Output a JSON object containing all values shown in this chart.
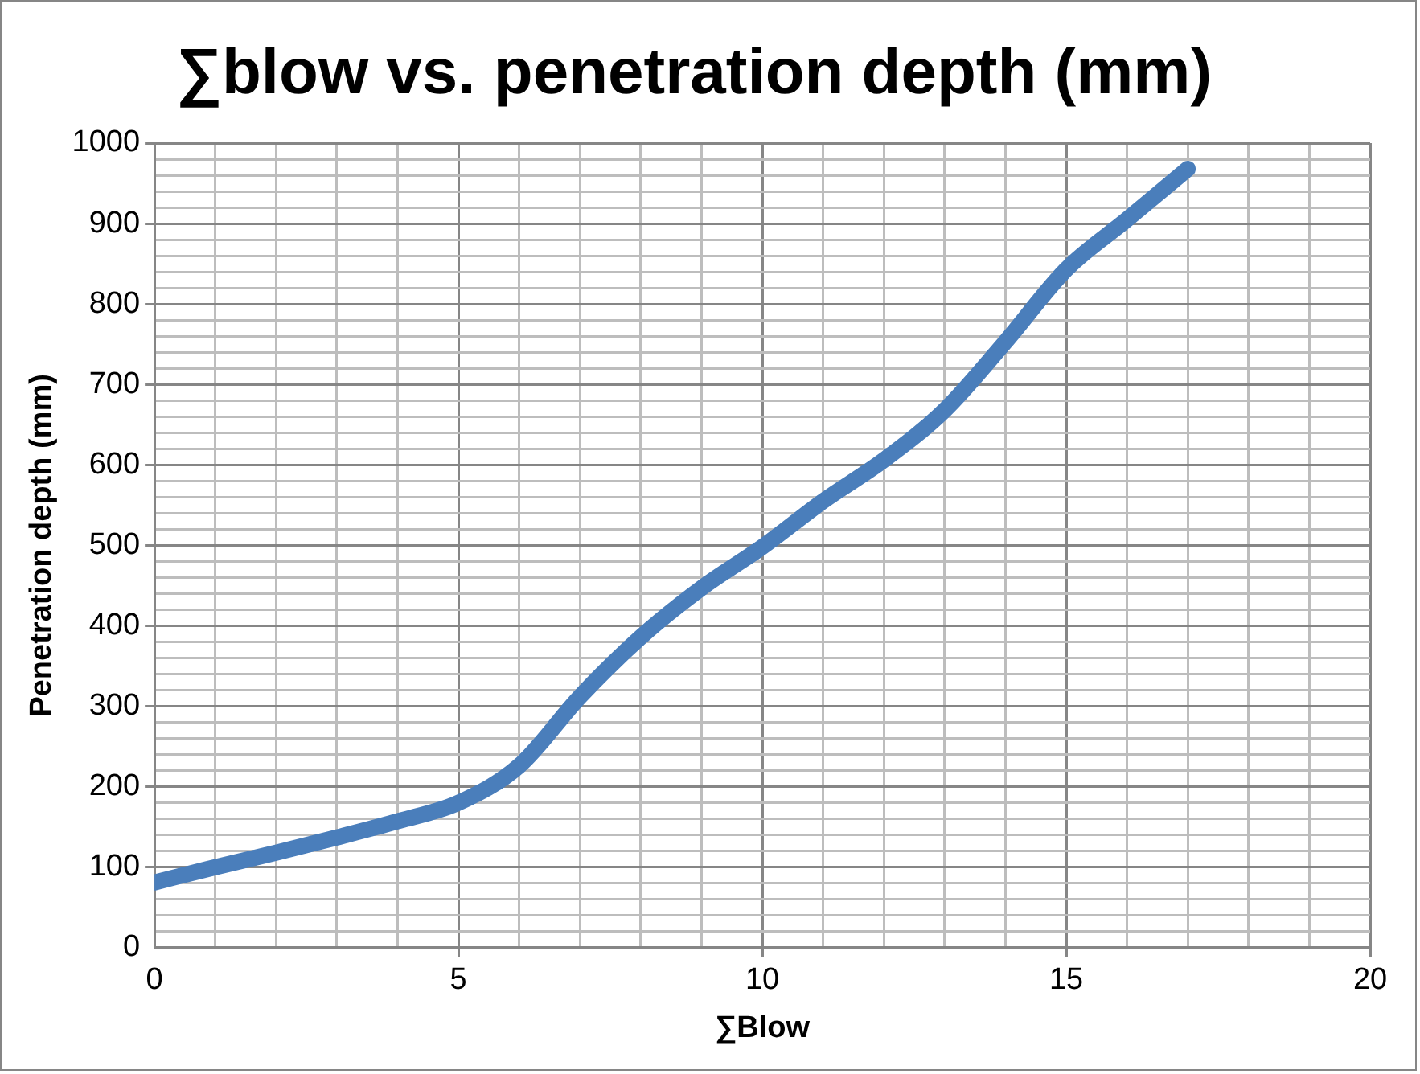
{
  "chart_data": {
    "type": "line",
    "title": "∑blow vs. penetration depth (mm)",
    "xlabel": "∑Blow",
    "ylabel": "Penetration depth (mm)",
    "x": [
      0,
      1,
      2,
      3,
      4,
      5,
      6,
      7,
      8,
      9,
      10,
      11,
      12,
      13,
      14,
      15,
      16,
      17
    ],
    "series": [
      {
        "color": "#4a7ebb",
        "values": [
          81,
          100,
          118,
          137,
          157,
          180,
          226,
          312,
          386,
          447,
          498,
          555,
          606,
          668,
          753,
          843,
          905,
          968
        ]
      }
    ],
    "xlim": [
      0,
      20
    ],
    "xticks": [
      0,
      {
        "value": 1,
        "label": null
      },
      {
        "value": 2,
        "label": null
      },
      {
        "value": 3,
        "label": null
      },
      {
        "value": 4,
        "label": null
      },
      5,
      {
        "value": 6,
        "label": null
      },
      {
        "value": 7,
        "label": null
      },
      {
        "value": 8,
        "label": null
      },
      {
        "value": 9,
        "label": null
      },
      10,
      {
        "value": 11,
        "label": null
      },
      {
        "value": 12,
        "label": null
      },
      {
        "value": 13,
        "label": null
      },
      {
        "value": 14,
        "label": null
      },
      15,
      {
        "value": 16,
        "label": null
      },
      {
        "value": 17,
        "label": null
      },
      {
        "value": 18,
        "label": null
      },
      {
        "value": 19,
        "label": null
      },
      20
    ],
    "ylim": [
      0,
      1000
    ],
    "yticks": [
      0,
      {
        "value": 20,
        "label": null
      },
      {
        "value": 40,
        "label": null
      },
      {
        "value": 60,
        "label": null
      },
      {
        "value": 80,
        "label": null
      },
      100,
      {
        "value": 120,
        "label": null
      },
      {
        "value": 140,
        "label": null
      },
      {
        "value": 160,
        "label": null
      },
      {
        "value": 180,
        "label": null
      },
      200,
      {
        "value": 220,
        "label": null
      },
      {
        "value": 240,
        "label": null
      },
      {
        "value": 260,
        "label": null
      },
      {
        "value": 280,
        "label": null
      },
      300,
      {
        "value": 320,
        "label": null
      },
      {
        "value": 340,
        "label": null
      },
      {
        "value": 360,
        "label": null
      },
      {
        "value": 380,
        "label": null
      },
      400,
      {
        "value": 420,
        "label": null
      },
      {
        "value": 440,
        "label": null
      },
      {
        "value": 460,
        "label": null
      },
      {
        "value": 480,
        "label": null
      },
      500,
      {
        "value": 520,
        "label": null
      },
      {
        "value": 540,
        "label": null
      },
      {
        "value": 560,
        "label": null
      },
      {
        "value": 580,
        "label": null
      },
      600,
      {
        "value": 620,
        "label": null
      },
      {
        "value": 640,
        "label": null
      },
      {
        "value": 660,
        "label": null
      },
      {
        "value": 680,
        "label": null
      },
      700,
      {
        "value": 720,
        "label": null
      },
      {
        "value": 740,
        "label": null
      },
      {
        "value": 760,
        "label": null
      },
      {
        "value": 780,
        "label": null
      },
      800,
      {
        "value": 820,
        "label": null
      },
      {
        "value": 840,
        "label": null
      },
      {
        "value": 860,
        "label": null
      },
      {
        "value": 880,
        "label": null
      },
      900,
      {
        "value": 920,
        "label": null
      },
      {
        "value": 940,
        "label": null
      },
      {
        "value": 960,
        "label": null
      },
      {
        "value": 980,
        "label": null
      },
      1000
    ],
    "grid": true,
    "marker": "none",
    "line_style": "solid",
    "legend": false
  }
}
